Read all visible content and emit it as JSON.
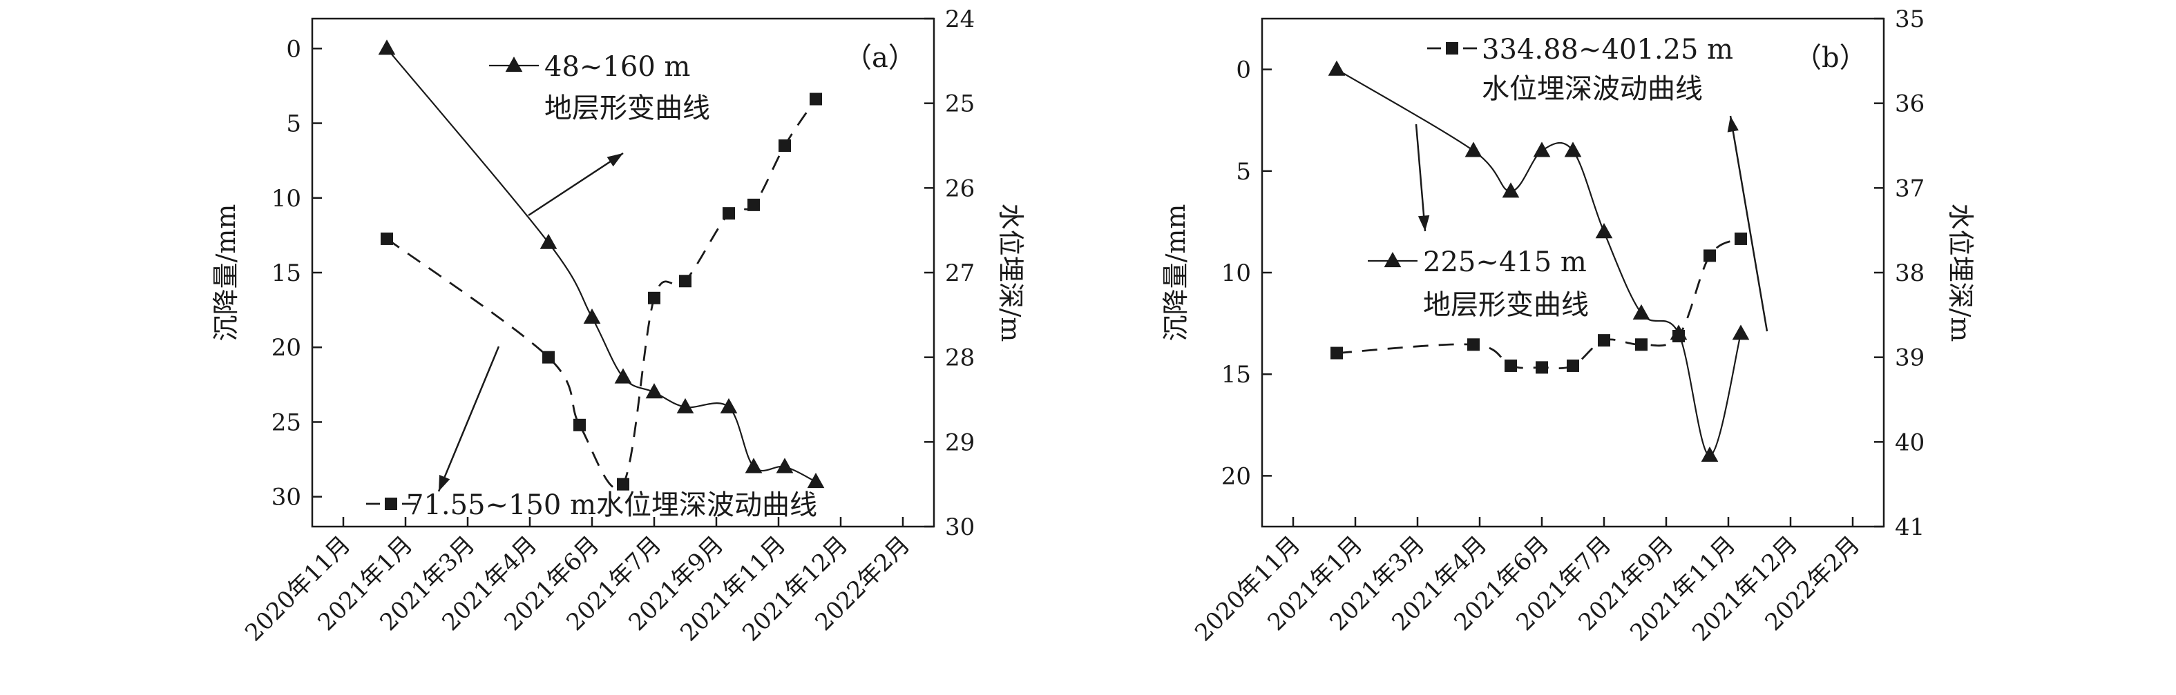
{
  "chart_data": [
    {
      "type": "line",
      "panel_label": "（a）",
      "ylabel": "沉降量/mm",
      "y2label": "水位埋深/m",
      "x_ticks": [
        "2020年11月",
        "2021年1月",
        "2021年3月",
        "2021年4月",
        "2021年6月",
        "2021年7月",
        "2021年9月",
        "2021年11月",
        "2021年12月",
        "2022年2月"
      ],
      "ylim": [
        -2,
        32
      ],
      "y_ticks": [
        0,
        5,
        10,
        15,
        20,
        25,
        30
      ],
      "y2lim": [
        24,
        30
      ],
      "y2_ticks": [
        24,
        25,
        26,
        27,
        28,
        29,
        30
      ],
      "series": [
        {
          "name": "48~160 m\n地层形变曲线",
          "axis": "left",
          "marker": "triangle",
          "line": "solid",
          "x": [
            0.7,
            3.3,
            4.0,
            4.5,
            5.0,
            5.5,
            6.2,
            6.6,
            7.1,
            7.6
          ],
          "y": [
            0,
            13,
            18,
            22,
            23,
            24,
            24,
            28,
            28,
            29
          ]
        },
        {
          "name": "71.55~150 m水位埋深波动曲线",
          "axis": "right",
          "marker": "square",
          "line": "dashed",
          "x": [
            0.7,
            3.3,
            3.8,
            4.5,
            5.0,
            5.5,
            6.2,
            6.6,
            7.1,
            7.6
          ],
          "y": [
            26.6,
            28.0,
            28.8,
            29.5,
            27.3,
            27.1,
            26.3,
            26.2,
            25.5,
            24.95
          ]
        }
      ]
    },
    {
      "type": "line",
      "panel_label": "（b）",
      "ylabel": "沉降量/mm",
      "y2label": "水位埋深/m",
      "x_ticks": [
        "2020年11月",
        "2021年1月",
        "2021年3月",
        "2021年4月",
        "2021年6月",
        "2021年7月",
        "2021年9月",
        "2021年11月",
        "2021年12月",
        "2022年2月"
      ],
      "ylim": [
        -2.5,
        22.5
      ],
      "y_ticks": [
        0,
        5,
        10,
        15,
        20
      ],
      "y2lim": [
        35,
        41
      ],
      "y2_ticks": [
        35,
        36,
        37,
        38,
        39,
        40,
        41
      ],
      "series": [
        {
          "name": "225~415 m\n地层形变曲线",
          "axis": "left",
          "marker": "triangle",
          "line": "solid",
          "x": [
            0.7,
            2.9,
            3.5,
            4.0,
            4.5,
            5.0,
            5.6,
            6.2,
            6.7,
            7.2
          ],
          "y": [
            0,
            4,
            6,
            4,
            4,
            8,
            12,
            13,
            19,
            13
          ]
        },
        {
          "name": "334.88~401.25 m\n水位埋深波动曲线",
          "axis": "right",
          "marker": "square",
          "line": "dashed",
          "x": [
            0.7,
            2.9,
            3.5,
            4.0,
            4.5,
            5.0,
            5.6,
            6.2,
            6.7,
            7.2
          ],
          "y": [
            38.95,
            38.85,
            39.1,
            39.12,
            39.1,
            38.8,
            38.85,
            38.75,
            37.8,
            37.6
          ]
        }
      ]
    }
  ]
}
